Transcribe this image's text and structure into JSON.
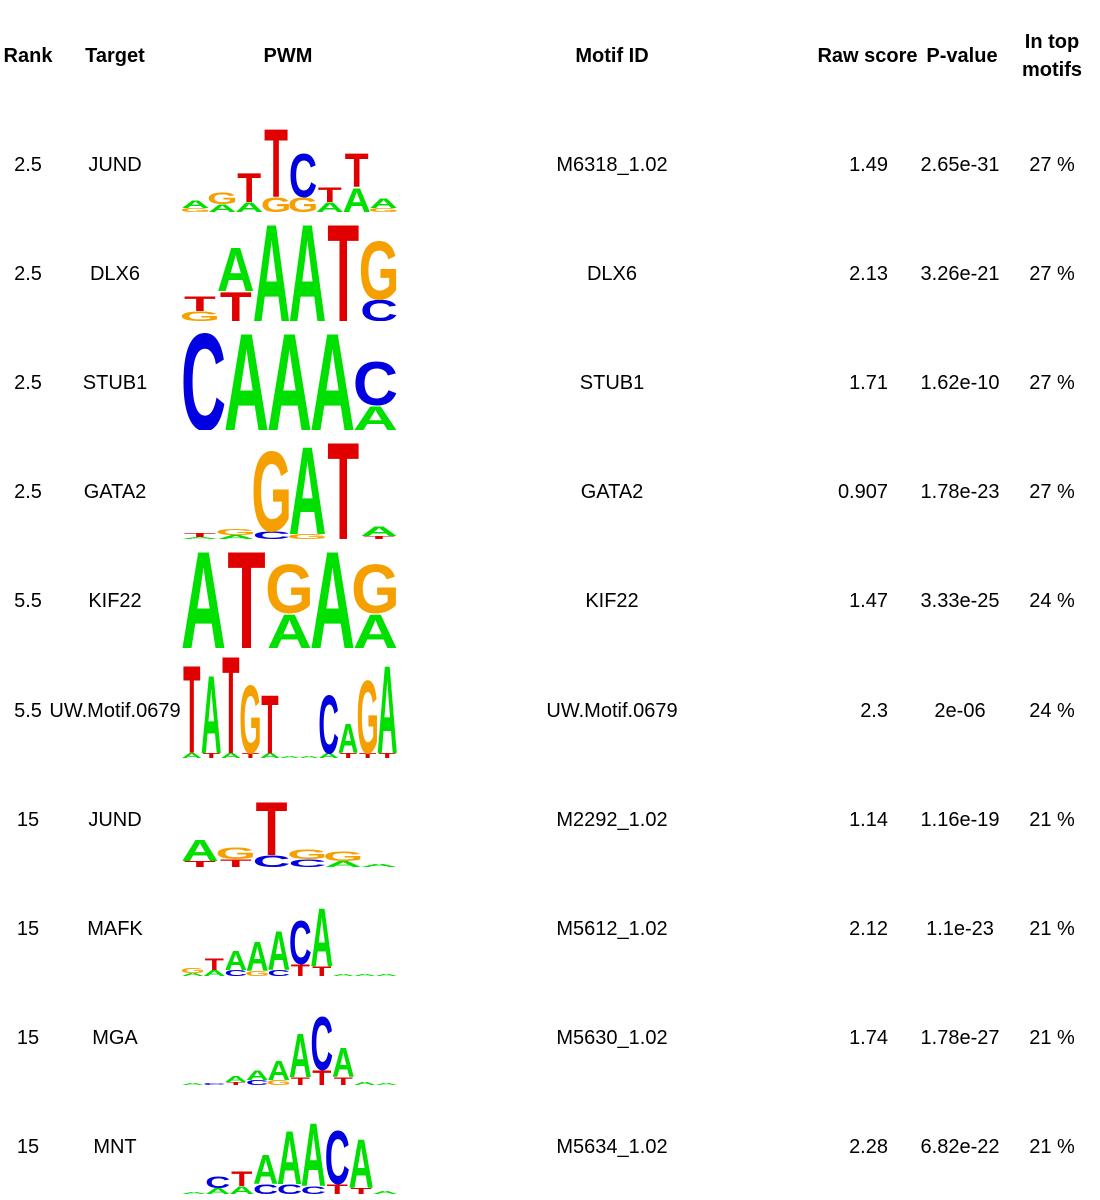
{
  "chart_data": {
    "type": "table",
    "columns": [
      "Rank",
      "Target",
      "PWM",
      "Motif ID",
      "Raw score",
      "P-value",
      "In top motifs"
    ],
    "nucleotide_colors": {
      "A": "#00e000",
      "C": "#0000e0",
      "G": "#f5a000",
      "T": "#e00000"
    },
    "rows": [
      {
        "rank": "2.5",
        "target": "JUND",
        "motif_id": "M6318_1.02",
        "raw_score": "1.49",
        "p_value": "2.65e-31",
        "in_top": "27 %",
        "pwm": [
          [
            [
              "A",
              0.08
            ],
            [
              "G",
              0.04
            ]
          ],
          [
            [
              "G",
              0.12
            ],
            [
              "A",
              0.08
            ]
          ],
          [
            [
              "T",
              0.3
            ],
            [
              "A",
              0.1
            ]
          ],
          [
            [
              "T",
              0.7
            ],
            [
              "G",
              0.15
            ]
          ],
          [
            [
              "C",
              0.45
            ],
            [
              "G",
              0.15
            ]
          ],
          [
            [
              "T",
              0.15
            ],
            [
              "A",
              0.1
            ]
          ],
          [
            [
              "T",
              0.35
            ],
            [
              "A",
              0.25
            ]
          ],
          [
            [
              "A",
              0.1
            ],
            [
              "G",
              0.04
            ]
          ]
        ]
      },
      {
        "rank": "2.5",
        "target": "DLX6",
        "motif_id": "DLX6",
        "raw_score": "2.13",
        "p_value": "3.26e-21",
        "in_top": "27 %",
        "pwm": [
          [
            [
              "T",
              0.15
            ],
            [
              "G",
              0.1
            ]
          ],
          [
            [
              "A",
              0.45
            ],
            [
              "T",
              0.3
            ]
          ],
          [
            [
              "A",
              1.0
            ]
          ],
          [
            [
              "A",
              1.0
            ]
          ],
          [
            [
              "T",
              1.0
            ]
          ],
          [
            [
              "G",
              0.6
            ],
            [
              "C",
              0.22
            ]
          ]
        ]
      },
      {
        "rank": "2.5",
        "target": "STUB1",
        "motif_id": "STUB1",
        "raw_score": "1.71",
        "p_value": "1.62e-10",
        "in_top": "27 %",
        "pwm": [
          [
            [
              "C",
              1.0
            ]
          ],
          [
            [
              "A",
              1.0
            ]
          ],
          [
            [
              "A",
              1.0
            ]
          ],
          [
            [
              "A",
              1.0
            ]
          ],
          [
            [
              "C",
              0.45
            ],
            [
              "A",
              0.25
            ]
          ]
        ]
      },
      {
        "rank": "2.5",
        "target": "GATA2",
        "motif_id": "GATA2",
        "raw_score": "0.907",
        "p_value": "1.78e-23",
        "in_top": "27 %",
        "pwm": [
          [
            [
              "T",
              0.04
            ],
            [
              "A",
              0.02
            ]
          ],
          [
            [
              "G",
              0.06
            ],
            [
              "A",
              0.04
            ]
          ],
          [
            [
              "G",
              0.82
            ],
            [
              "C",
              0.08
            ]
          ],
          [
            [
              "A",
              0.9
            ],
            [
              "G",
              0.05
            ]
          ],
          [
            [
              "T",
              1.0
            ]
          ],
          [
            [
              "A",
              0.1
            ],
            [
              "T",
              0.03
            ]
          ]
        ]
      },
      {
        "rank": "5.5",
        "target": "KIF22",
        "motif_id": "KIF22",
        "raw_score": "1.47",
        "p_value": "3.33e-25",
        "in_top": "24 %",
        "pwm": [
          [
            [
              "A",
              1.0
            ]
          ],
          [
            [
              "T",
              1.0
            ]
          ],
          [
            [
              "G",
              0.5
            ],
            [
              "A",
              0.35
            ]
          ],
          [
            [
              "A",
              1.0
            ]
          ],
          [
            [
              "G",
              0.5
            ],
            [
              "A",
              0.35
            ]
          ]
        ]
      },
      {
        "rank": "5.5",
        "target": "UW.Motif.0679",
        "motif_id": "UW.Motif.0679",
        "raw_score": "2.3",
        "p_value": "2e-06",
        "in_top": "24 %",
        "pwm": [
          [
            [
              "T",
              0.9
            ],
            [
              "A",
              0.05
            ]
          ],
          [
            [
              "A",
              0.8
            ],
            [
              "T",
              0.05
            ]
          ],
          [
            [
              "T",
              1.0
            ],
            [
              "A",
              0.05
            ]
          ],
          [
            [
              "G",
              0.7
            ],
            [
              "T",
              0.05
            ]
          ],
          [
            [
              "T",
              0.6
            ],
            [
              "A",
              0.05
            ]
          ],
          [
            [
              "A",
              0.02
            ]
          ],
          [
            [
              "A",
              0.02
            ]
          ],
          [
            [
              "C",
              0.6
            ],
            [
              "A",
              0.05
            ]
          ],
          [
            [
              "A",
              0.3
            ],
            [
              "T",
              0.05
            ]
          ],
          [
            [
              "G",
              0.75
            ],
            [
              "T",
              0.05
            ]
          ],
          [
            [
              "A",
              0.9
            ],
            [
              "T",
              0.05
            ]
          ]
        ]
      },
      {
        "rank": "15",
        "target": "JUND",
        "motif_id": "M2292_1.02",
        "raw_score": "1.14",
        "p_value": "1.16e-19",
        "in_top": "21 %",
        "pwm": [
          [
            [
              "A",
              0.22
            ],
            [
              "T",
              0.06
            ]
          ],
          [
            [
              "G",
              0.12
            ],
            [
              "T",
              0.08
            ]
          ],
          [
            [
              "T",
              0.55
            ],
            [
              "C",
              0.12
            ]
          ],
          [
            [
              "G",
              0.1
            ],
            [
              "C",
              0.08
            ]
          ],
          [
            [
              "G",
              0.1
            ],
            [
              "A",
              0.06
            ]
          ],
          [
            [
              "A",
              0.03
            ]
          ]
        ]
      },
      {
        "rank": "15",
        "target": "MAFK",
        "motif_id": "M5612_1.02",
        "raw_score": "2.12",
        "p_value": "1.1e-23",
        "in_top": "21 %",
        "pwm": [
          [
            [
              "G",
              0.05
            ],
            [
              "A",
              0.03
            ]
          ],
          [
            [
              "T",
              0.12
            ],
            [
              "A",
              0.06
            ]
          ],
          [
            [
              "A",
              0.2
            ],
            [
              "C",
              0.06
            ]
          ],
          [
            [
              "A",
              0.3
            ],
            [
              "G",
              0.05
            ]
          ],
          [
            [
              "A",
              0.4
            ],
            [
              "C",
              0.06
            ]
          ],
          [
            [
              "C",
              0.45
            ],
            [
              "T",
              0.12
            ]
          ],
          [
            [
              "A",
              0.6
            ],
            [
              "T",
              0.1
            ]
          ],
          [
            [
              "A",
              0.02
            ]
          ],
          [
            [
              "A",
              0.02
            ]
          ],
          [
            [
              "A",
              0.02
            ]
          ]
        ]
      },
      {
        "rank": "15",
        "target": "MGA",
        "motif_id": "M5630_1.02",
        "raw_score": "1.74",
        "p_value": "1.78e-27",
        "in_top": "21 %",
        "pwm": [
          [
            [
              "A",
              0.02
            ]
          ],
          [
            [
              "C",
              0.02
            ]
          ],
          [
            [
              "A",
              0.06
            ],
            [
              "T",
              0.03
            ]
          ],
          [
            [
              "A",
              0.1
            ],
            [
              "C",
              0.05
            ]
          ],
          [
            [
              "A",
              0.2
            ],
            [
              "G",
              0.05
            ]
          ],
          [
            [
              "A",
              0.45
            ],
            [
              "T",
              0.08
            ]
          ],
          [
            [
              "C",
              0.55
            ],
            [
              "T",
              0.15
            ]
          ],
          [
            [
              "A",
              0.3
            ],
            [
              "T",
              0.08
            ]
          ],
          [
            [
              "A",
              0.03
            ]
          ],
          [
            [
              "A",
              0.02
            ]
          ]
        ]
      },
      {
        "rank": "15",
        "target": "MNT",
        "motif_id": "M5634_1.02",
        "raw_score": "2.28",
        "p_value": "6.82e-22",
        "in_top": "21 %",
        "pwm": [
          [
            [
              "A",
              0.02
            ]
          ],
          [
            [
              "C",
              0.12
            ],
            [
              "A",
              0.06
            ]
          ],
          [
            [
              "T",
              0.15
            ],
            [
              "A",
              0.08
            ]
          ],
          [
            [
              "A",
              0.3
            ],
            [
              "C",
              0.1
            ]
          ],
          [
            [
              "A",
              0.55
            ],
            [
              "C",
              0.1
            ]
          ],
          [
            [
              "A",
              0.65
            ],
            [
              "C",
              0.08
            ]
          ],
          [
            [
              "C",
              0.55
            ],
            [
              "T",
              0.1
            ]
          ],
          [
            [
              "A",
              0.5
            ],
            [
              "T",
              0.06
            ]
          ],
          [
            [
              "A",
              0.03
            ]
          ]
        ]
      }
    ]
  }
}
